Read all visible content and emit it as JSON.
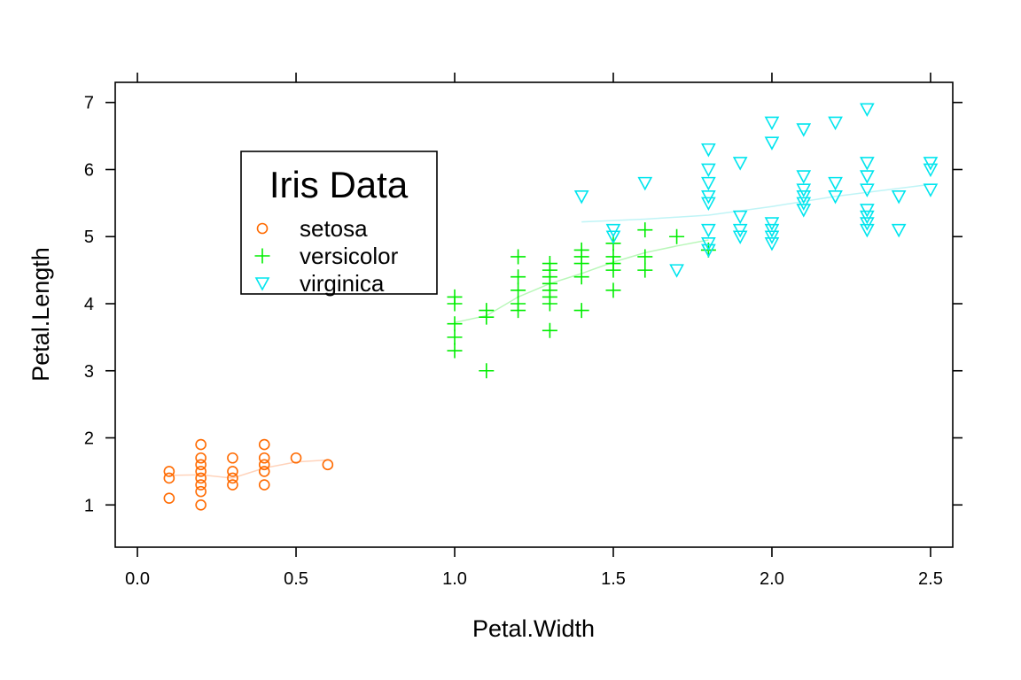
{
  "chart_data": {
    "type": "scatter",
    "title": "",
    "xlabel": "Petal.Width",
    "ylabel": "Petal.Length",
    "xlim": [
      -0.07,
      2.57
    ],
    "ylim": [
      0.37,
      7.3
    ],
    "x_ticks": [
      0.0,
      0.5,
      1.0,
      1.5,
      2.0,
      2.5
    ],
    "x_tick_labels": [
      "0.0",
      "0.5",
      "1.0",
      "1.5",
      "2.0",
      "2.5"
    ],
    "y_ticks": [
      1,
      2,
      3,
      4,
      5,
      6,
      7
    ],
    "y_tick_labels": [
      "1",
      "2",
      "3",
      "4",
      "5",
      "6",
      "7"
    ],
    "grid": false,
    "legend": {
      "title": "Iris Data",
      "placement": "top-left",
      "entries": [
        "setosa",
        "versicolor",
        "virginica"
      ]
    },
    "series": [
      {
        "name": "setosa",
        "marker": "circle",
        "color": "#ff6a00",
        "smooth_color": "#ffd3bb",
        "points": [
          [
            0.1,
            1.5
          ],
          [
            0.1,
            1.4
          ],
          [
            0.1,
            1.1
          ],
          [
            0.2,
            1.9
          ],
          [
            0.2,
            1.7
          ],
          [
            0.2,
            1.6
          ],
          [
            0.2,
            1.5
          ],
          [
            0.2,
            1.4
          ],
          [
            0.2,
            1.3
          ],
          [
            0.2,
            1.2
          ],
          [
            0.2,
            1.0
          ],
          [
            0.3,
            1.7
          ],
          [
            0.3,
            1.5
          ],
          [
            0.3,
            1.4
          ],
          [
            0.3,
            1.3
          ],
          [
            0.4,
            1.9
          ],
          [
            0.4,
            1.7
          ],
          [
            0.4,
            1.6
          ],
          [
            0.4,
            1.5
          ],
          [
            0.4,
            1.3
          ],
          [
            0.5,
            1.7
          ],
          [
            0.6,
            1.6
          ]
        ],
        "smooth": [
          [
            0.1,
            1.44
          ],
          [
            0.2,
            1.45
          ],
          [
            0.3,
            1.4
          ],
          [
            0.4,
            1.55
          ],
          [
            0.5,
            1.64
          ],
          [
            0.6,
            1.67
          ]
        ]
      },
      {
        "name": "versicolor",
        "marker": "plus",
        "color": "#00ee00",
        "smooth_color": "#b9f7b9",
        "points": [
          [
            1.0,
            4.1
          ],
          [
            1.0,
            4.0
          ],
          [
            1.0,
            3.7
          ],
          [
            1.0,
            3.5
          ],
          [
            1.0,
            3.3
          ],
          [
            1.1,
            3.9
          ],
          [
            1.1,
            3.8
          ],
          [
            1.1,
            3.0
          ],
          [
            1.2,
            4.7
          ],
          [
            1.2,
            4.4
          ],
          [
            1.2,
            4.2
          ],
          [
            1.2,
            4.0
          ],
          [
            1.2,
            3.9
          ],
          [
            1.3,
            4.6
          ],
          [
            1.3,
            4.5
          ],
          [
            1.3,
            4.4
          ],
          [
            1.3,
            4.3
          ],
          [
            1.3,
            4.2
          ],
          [
            1.3,
            4.1
          ],
          [
            1.3,
            4.0
          ],
          [
            1.3,
            3.6
          ],
          [
            1.4,
            4.8
          ],
          [
            1.4,
            4.7
          ],
          [
            1.4,
            4.6
          ],
          [
            1.4,
            4.4
          ],
          [
            1.4,
            3.9
          ],
          [
            1.5,
            4.9
          ],
          [
            1.5,
            4.7
          ],
          [
            1.5,
            4.6
          ],
          [
            1.5,
            4.5
          ],
          [
            1.5,
            4.2
          ],
          [
            1.6,
            5.1
          ],
          [
            1.6,
            4.7
          ],
          [
            1.6,
            4.5
          ],
          [
            1.7,
            5.0
          ],
          [
            1.8,
            4.8
          ]
        ],
        "smooth": [
          [
            1.0,
            3.72
          ],
          [
            1.1,
            3.82
          ],
          [
            1.2,
            4.1
          ],
          [
            1.3,
            4.3
          ],
          [
            1.4,
            4.45
          ],
          [
            1.5,
            4.62
          ],
          [
            1.6,
            4.76
          ],
          [
            1.7,
            4.86
          ],
          [
            1.8,
            4.95
          ]
        ]
      },
      {
        "name": "virginica",
        "marker": "triangle-down",
        "color": "#00e5ee",
        "smooth_color": "#bff4f6",
        "points": [
          [
            1.4,
            5.6
          ],
          [
            1.5,
            5.1
          ],
          [
            1.5,
            5.0
          ],
          [
            1.6,
            5.8
          ],
          [
            1.7,
            4.5
          ],
          [
            1.8,
            6.3
          ],
          [
            1.8,
            6.0
          ],
          [
            1.8,
            5.8
          ],
          [
            1.8,
            5.6
          ],
          [
            1.8,
            5.5
          ],
          [
            1.8,
            5.1
          ],
          [
            1.8,
            4.9
          ],
          [
            1.8,
            4.8
          ],
          [
            1.9,
            6.1
          ],
          [
            1.9,
            5.3
          ],
          [
            1.9,
            5.1
          ],
          [
            1.9,
            5.0
          ],
          [
            2.0,
            6.7
          ],
          [
            2.0,
            6.4
          ],
          [
            2.0,
            5.2
          ],
          [
            2.0,
            5.1
          ],
          [
            2.0,
            5.0
          ],
          [
            2.0,
            4.9
          ],
          [
            2.1,
            6.6
          ],
          [
            2.1,
            5.9
          ],
          [
            2.1,
            5.7
          ],
          [
            2.1,
            5.6
          ],
          [
            2.1,
            5.5
          ],
          [
            2.1,
            5.4
          ],
          [
            2.2,
            6.7
          ],
          [
            2.2,
            5.8
          ],
          [
            2.2,
            5.6
          ],
          [
            2.3,
            6.9
          ],
          [
            2.3,
            6.1
          ],
          [
            2.3,
            5.9
          ],
          [
            2.3,
            5.7
          ],
          [
            2.3,
            5.4
          ],
          [
            2.3,
            5.3
          ],
          [
            2.3,
            5.2
          ],
          [
            2.3,
            5.1
          ],
          [
            2.4,
            5.6
          ],
          [
            2.4,
            5.1
          ],
          [
            2.5,
            6.1
          ],
          [
            2.5,
            6.0
          ],
          [
            2.5,
            5.7
          ]
        ],
        "smooth": [
          [
            1.4,
            5.22
          ],
          [
            1.6,
            5.26
          ],
          [
            1.8,
            5.32
          ],
          [
            2.0,
            5.45
          ],
          [
            2.2,
            5.6
          ],
          [
            2.4,
            5.72
          ],
          [
            2.5,
            5.78
          ]
        ]
      }
    ]
  }
}
